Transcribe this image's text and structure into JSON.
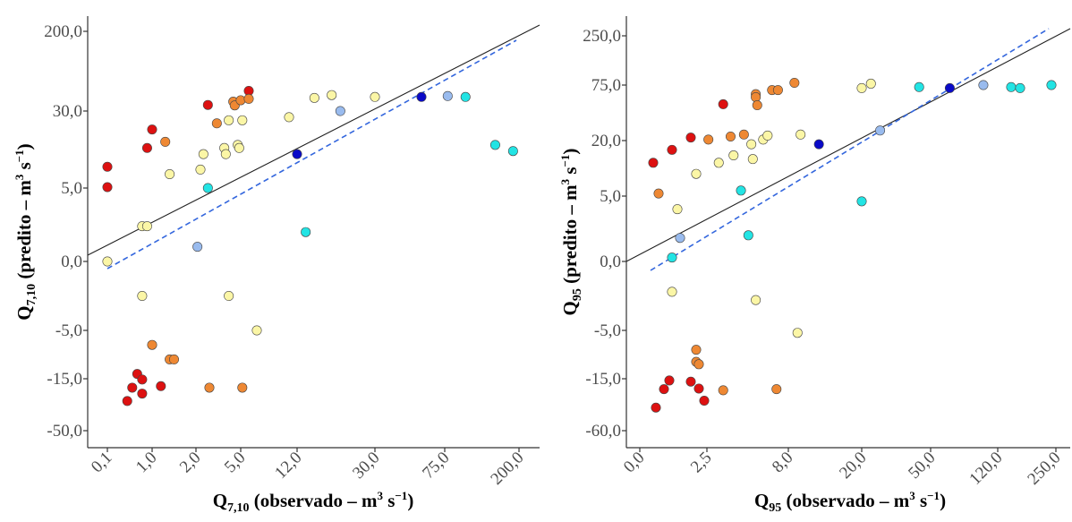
{
  "colors": {
    "red": "#dd1111",
    "orange": "#ee8833",
    "yellow": "#fbf6a6",
    "cyan": "#22e4e4",
    "lightblue": "#99bbee",
    "navy": "#0a0ac8",
    "identity_line": "#222222",
    "fit_line": "#3366dd"
  },
  "chart_data": [
    {
      "type": "scatter",
      "xlabel": {
        "main": "Q",
        "sub": "7,10",
        "rest": " (observado – m",
        "sup1": "3",
        "mid": " s",
        "sup2": "−1",
        "end": ")"
      },
      "ylabel": {
        "main": "Q",
        "sub": "7,10",
        "rest": " (predito – m",
        "sup1": "3",
        "mid": " s",
        "sup2": "−1",
        "end": ")"
      },
      "x_ticks": [
        "0,1",
        "1,0",
        "2,0",
        "5,0",
        "12,0",
        "30,0",
        "75,0",
        "200,0"
      ],
      "y_ticks": [
        "200,0",
        "30,0",
        "5,0",
        "0,0",
        "-5,0",
        "-15,0",
        "-50,0"
      ],
      "x_scale": "ordinal tick positions (non-linear)",
      "lines": [
        {
          "kind": "solid",
          "note": "1:1 line"
        },
        {
          "kind": "dashed",
          "note": "fitted line"
        }
      ],
      "points": [
        {
          "x": 0.1,
          "y": 0.0,
          "c": "yellow"
        },
        {
          "x": 0.1,
          "y": 11.9,
          "c": "red"
        },
        {
          "x": 0.1,
          "y": 5.3,
          "c": "red"
        },
        {
          "x": 0.8,
          "y": 2.4,
          "c": "yellow"
        },
        {
          "x": 0.9,
          "y": 2.4,
          "c": "yellow"
        },
        {
          "x": 0.9,
          "y": 18.0,
          "c": "red"
        },
        {
          "x": 1.0,
          "y": 24.0,
          "c": "red"
        },
        {
          "x": 1.3,
          "y": 20.0,
          "c": "orange"
        },
        {
          "x": 1.4,
          "y": 9.5,
          "c": "yellow"
        },
        {
          "x": 2.3,
          "y": 11.0,
          "c": "yellow"
        },
        {
          "x": 2.5,
          "y": 16.0,
          "c": "yellow"
        },
        {
          "x": 2.8,
          "y": 43.0,
          "c": "red"
        },
        {
          "x": 2.8,
          "y": 5.0,
          "c": "cyan"
        },
        {
          "x": 2.1,
          "y": 1.0,
          "c": "lightblue"
        },
        {
          "x": 3.4,
          "y": 26.0,
          "c": "orange"
        },
        {
          "x": 3.9,
          "y": 18.0,
          "c": "yellow"
        },
        {
          "x": 4.0,
          "y": 16.0,
          "c": "yellow"
        },
        {
          "x": 4.2,
          "y": 27.0,
          "c": "yellow"
        },
        {
          "x": 4.5,
          "y": 50.0,
          "c": "orange"
        },
        {
          "x": 4.6,
          "y": 42.0,
          "c": "orange"
        },
        {
          "x": 5.0,
          "y": 53.0,
          "c": "orange"
        },
        {
          "x": 4.8,
          "y": 19.0,
          "c": "yellow"
        },
        {
          "x": 4.9,
          "y": 18.0,
          "c": "yellow"
        },
        {
          "x": 5.2,
          "y": 27.0,
          "c": "yellow"
        },
        {
          "x": 6.0,
          "y": 73.0,
          "c": "red"
        },
        {
          "x": 6.0,
          "y": 56.0,
          "c": "orange"
        },
        {
          "x": 11.0,
          "y": 28.0,
          "c": "yellow"
        },
        {
          "x": 12.0,
          "y": 16.0,
          "c": "navy"
        },
        {
          "x": 14.0,
          "y": 2.0,
          "c": "cyan"
        },
        {
          "x": 16.0,
          "y": 58.0,
          "c": "yellow"
        },
        {
          "x": 20.0,
          "y": 64.0,
          "c": "yellow"
        },
        {
          "x": 22.0,
          "y": 30.0,
          "c": "lightblue"
        },
        {
          "x": 30.0,
          "y": 60.0,
          "c": "yellow"
        },
        {
          "x": 60.0,
          "y": 60.0,
          "c": "navy"
        },
        {
          "x": 80.0,
          "y": 62.0,
          "c": "lightblue"
        },
        {
          "x": 110.0,
          "y": 60.0,
          "c": "cyan"
        },
        {
          "x": 160.0,
          "y": 19.0,
          "c": "cyan"
        },
        {
          "x": 190.0,
          "y": 17.0,
          "c": "cyan"
        },
        {
          "x": 0.8,
          "y": -2.5,
          "c": "yellow"
        },
        {
          "x": 4.2,
          "y": -2.5,
          "c": "yellow"
        },
        {
          "x": 7.0,
          "y": -5.0,
          "c": "yellow"
        },
        {
          "x": 1.0,
          "y": -8.0,
          "c": "orange"
        },
        {
          "x": 1.4,
          "y": -11.0,
          "c": "orange"
        },
        {
          "x": 1.5,
          "y": -11.0,
          "c": "orange"
        },
        {
          "x": 0.7,
          "y": -14.0,
          "c": "red"
        },
        {
          "x": 0.8,
          "y": -15.5,
          "c": "red"
        },
        {
          "x": 0.6,
          "y": -21.0,
          "c": "red"
        },
        {
          "x": 1.2,
          "y": -20.0,
          "c": "red"
        },
        {
          "x": 0.8,
          "y": -25.0,
          "c": "red"
        },
        {
          "x": 0.5,
          "y": -30.0,
          "c": "red"
        },
        {
          "x": 2.9,
          "y": -21.0,
          "c": "orange"
        },
        {
          "x": 5.2,
          "y": -21.0,
          "c": "orange"
        }
      ]
    },
    {
      "type": "scatter",
      "xlabel": {
        "main": "Q",
        "sub": "95",
        "rest": " (observado – m",
        "sup1": "3",
        "mid": " s",
        "sup2": "−1",
        "end": ")"
      },
      "ylabel": {
        "main": "Q",
        "sub": "95",
        "rest": " (predito – m",
        "sup1": "3",
        "mid": " s",
        "sup2": "−1",
        "end": ")"
      },
      "x_ticks": [
        "0,0",
        "2,5",
        "8,0",
        "20,0",
        "50,0",
        "120,0",
        "250,0"
      ],
      "y_ticks": [
        "250,0",
        "75,0",
        "20,0",
        "5,0",
        "0,0",
        "-5,0",
        "-15,0",
        "-60,0"
      ],
      "x_scale": "ordinal tick positions (non-linear)",
      "lines": [
        {
          "kind": "solid",
          "note": "1:1 line"
        },
        {
          "kind": "dashed",
          "note": "fitted line"
        }
      ],
      "points": [
        {
          "x": 0.5,
          "y": 14.0,
          "c": "red"
        },
        {
          "x": 0.7,
          "y": 5.7,
          "c": "orange"
        },
        {
          "x": 1.2,
          "y": 17.5,
          "c": "red"
        },
        {
          "x": 1.4,
          "y": 4.0,
          "c": "yellow"
        },
        {
          "x": 1.5,
          "y": 1.8,
          "c": "lightblue"
        },
        {
          "x": 1.2,
          "y": 0.3,
          "c": "cyan"
        },
        {
          "x": 1.9,
          "y": 23.0,
          "c": "red"
        },
        {
          "x": 2.1,
          "y": 11.0,
          "c": "yellow"
        },
        {
          "x": 2.6,
          "y": 21.0,
          "c": "orange"
        },
        {
          "x": 3.3,
          "y": 14.0,
          "c": "yellow"
        },
        {
          "x": 3.6,
          "y": 56.0,
          "c": "red"
        },
        {
          "x": 4.1,
          "y": 24.0,
          "c": "orange"
        },
        {
          "x": 4.3,
          "y": 16.0,
          "c": "yellow"
        },
        {
          "x": 4.8,
          "y": 6.5,
          "c": "cyan"
        },
        {
          "x": 5.0,
          "y": 26.0,
          "c": "orange"
        },
        {
          "x": 5.3,
          "y": 2.0,
          "c": "cyan"
        },
        {
          "x": 5.5,
          "y": 19.0,
          "c": "yellow"
        },
        {
          "x": 5.6,
          "y": 15.0,
          "c": "yellow"
        },
        {
          "x": 5.8,
          "y": 66.0,
          "c": "orange"
        },
        {
          "x": 5.8,
          "y": 63.0,
          "c": "orange"
        },
        {
          "x": 5.9,
          "y": 55.0,
          "c": "orange"
        },
        {
          "x": 6.3,
          "y": 21.0,
          "c": "yellow"
        },
        {
          "x": 6.6,
          "y": 25.0,
          "c": "yellow"
        },
        {
          "x": 6.9,
          "y": 70.0,
          "c": "orange"
        },
        {
          "x": 7.3,
          "y": 70.0,
          "c": "orange"
        },
        {
          "x": 9.0,
          "y": 83.0,
          "c": "orange"
        },
        {
          "x": 10.0,
          "y": 26.0,
          "c": "yellow"
        },
        {
          "x": 13.0,
          "y": 19.0,
          "c": "navy"
        },
        {
          "x": 20.0,
          "y": 72.0,
          "c": "yellow"
        },
        {
          "x": 20.0,
          "y": 4.6,
          "c": "cyan"
        },
        {
          "x": 24.0,
          "y": 80.0,
          "c": "yellow"
        },
        {
          "x": 28.0,
          "y": 30.0,
          "c": "lightblue"
        },
        {
          "x": 45.0,
          "y": 73.0,
          "c": "cyan"
        },
        {
          "x": 70.0,
          "y": 72.0,
          "c": "navy"
        },
        {
          "x": 105.0,
          "y": 75.0,
          "c": "lightblue"
        },
        {
          "x": 150.0,
          "y": 73.0,
          "c": "cyan"
        },
        {
          "x": 170.0,
          "y": 72.0,
          "c": "cyan"
        },
        {
          "x": 240.0,
          "y": 75.0,
          "c": "cyan"
        },
        {
          "x": 1.2,
          "y": -2.2,
          "c": "yellow"
        },
        {
          "x": 5.8,
          "y": -2.8,
          "c": "yellow"
        },
        {
          "x": 9.5,
          "y": -5.5,
          "c": "yellow"
        },
        {
          "x": 2.1,
          "y": -9.0,
          "c": "orange"
        },
        {
          "x": 2.1,
          "y": -11.5,
          "c": "orange"
        },
        {
          "x": 2.2,
          "y": -12.0,
          "c": "orange"
        },
        {
          "x": 1.1,
          "y": -16.5,
          "c": "red"
        },
        {
          "x": 1.9,
          "y": -17.5,
          "c": "red"
        },
        {
          "x": 0.9,
          "y": -24.0,
          "c": "red"
        },
        {
          "x": 2.2,
          "y": -23.5,
          "c": "red"
        },
        {
          "x": 2.4,
          "y": -34.0,
          "c": "red"
        },
        {
          "x": 0.6,
          "y": -40.0,
          "c": "red"
        },
        {
          "x": 3.6,
          "y": -25.0,
          "c": "orange"
        },
        {
          "x": 7.2,
          "y": -24.0,
          "c": "orange"
        }
      ]
    }
  ]
}
